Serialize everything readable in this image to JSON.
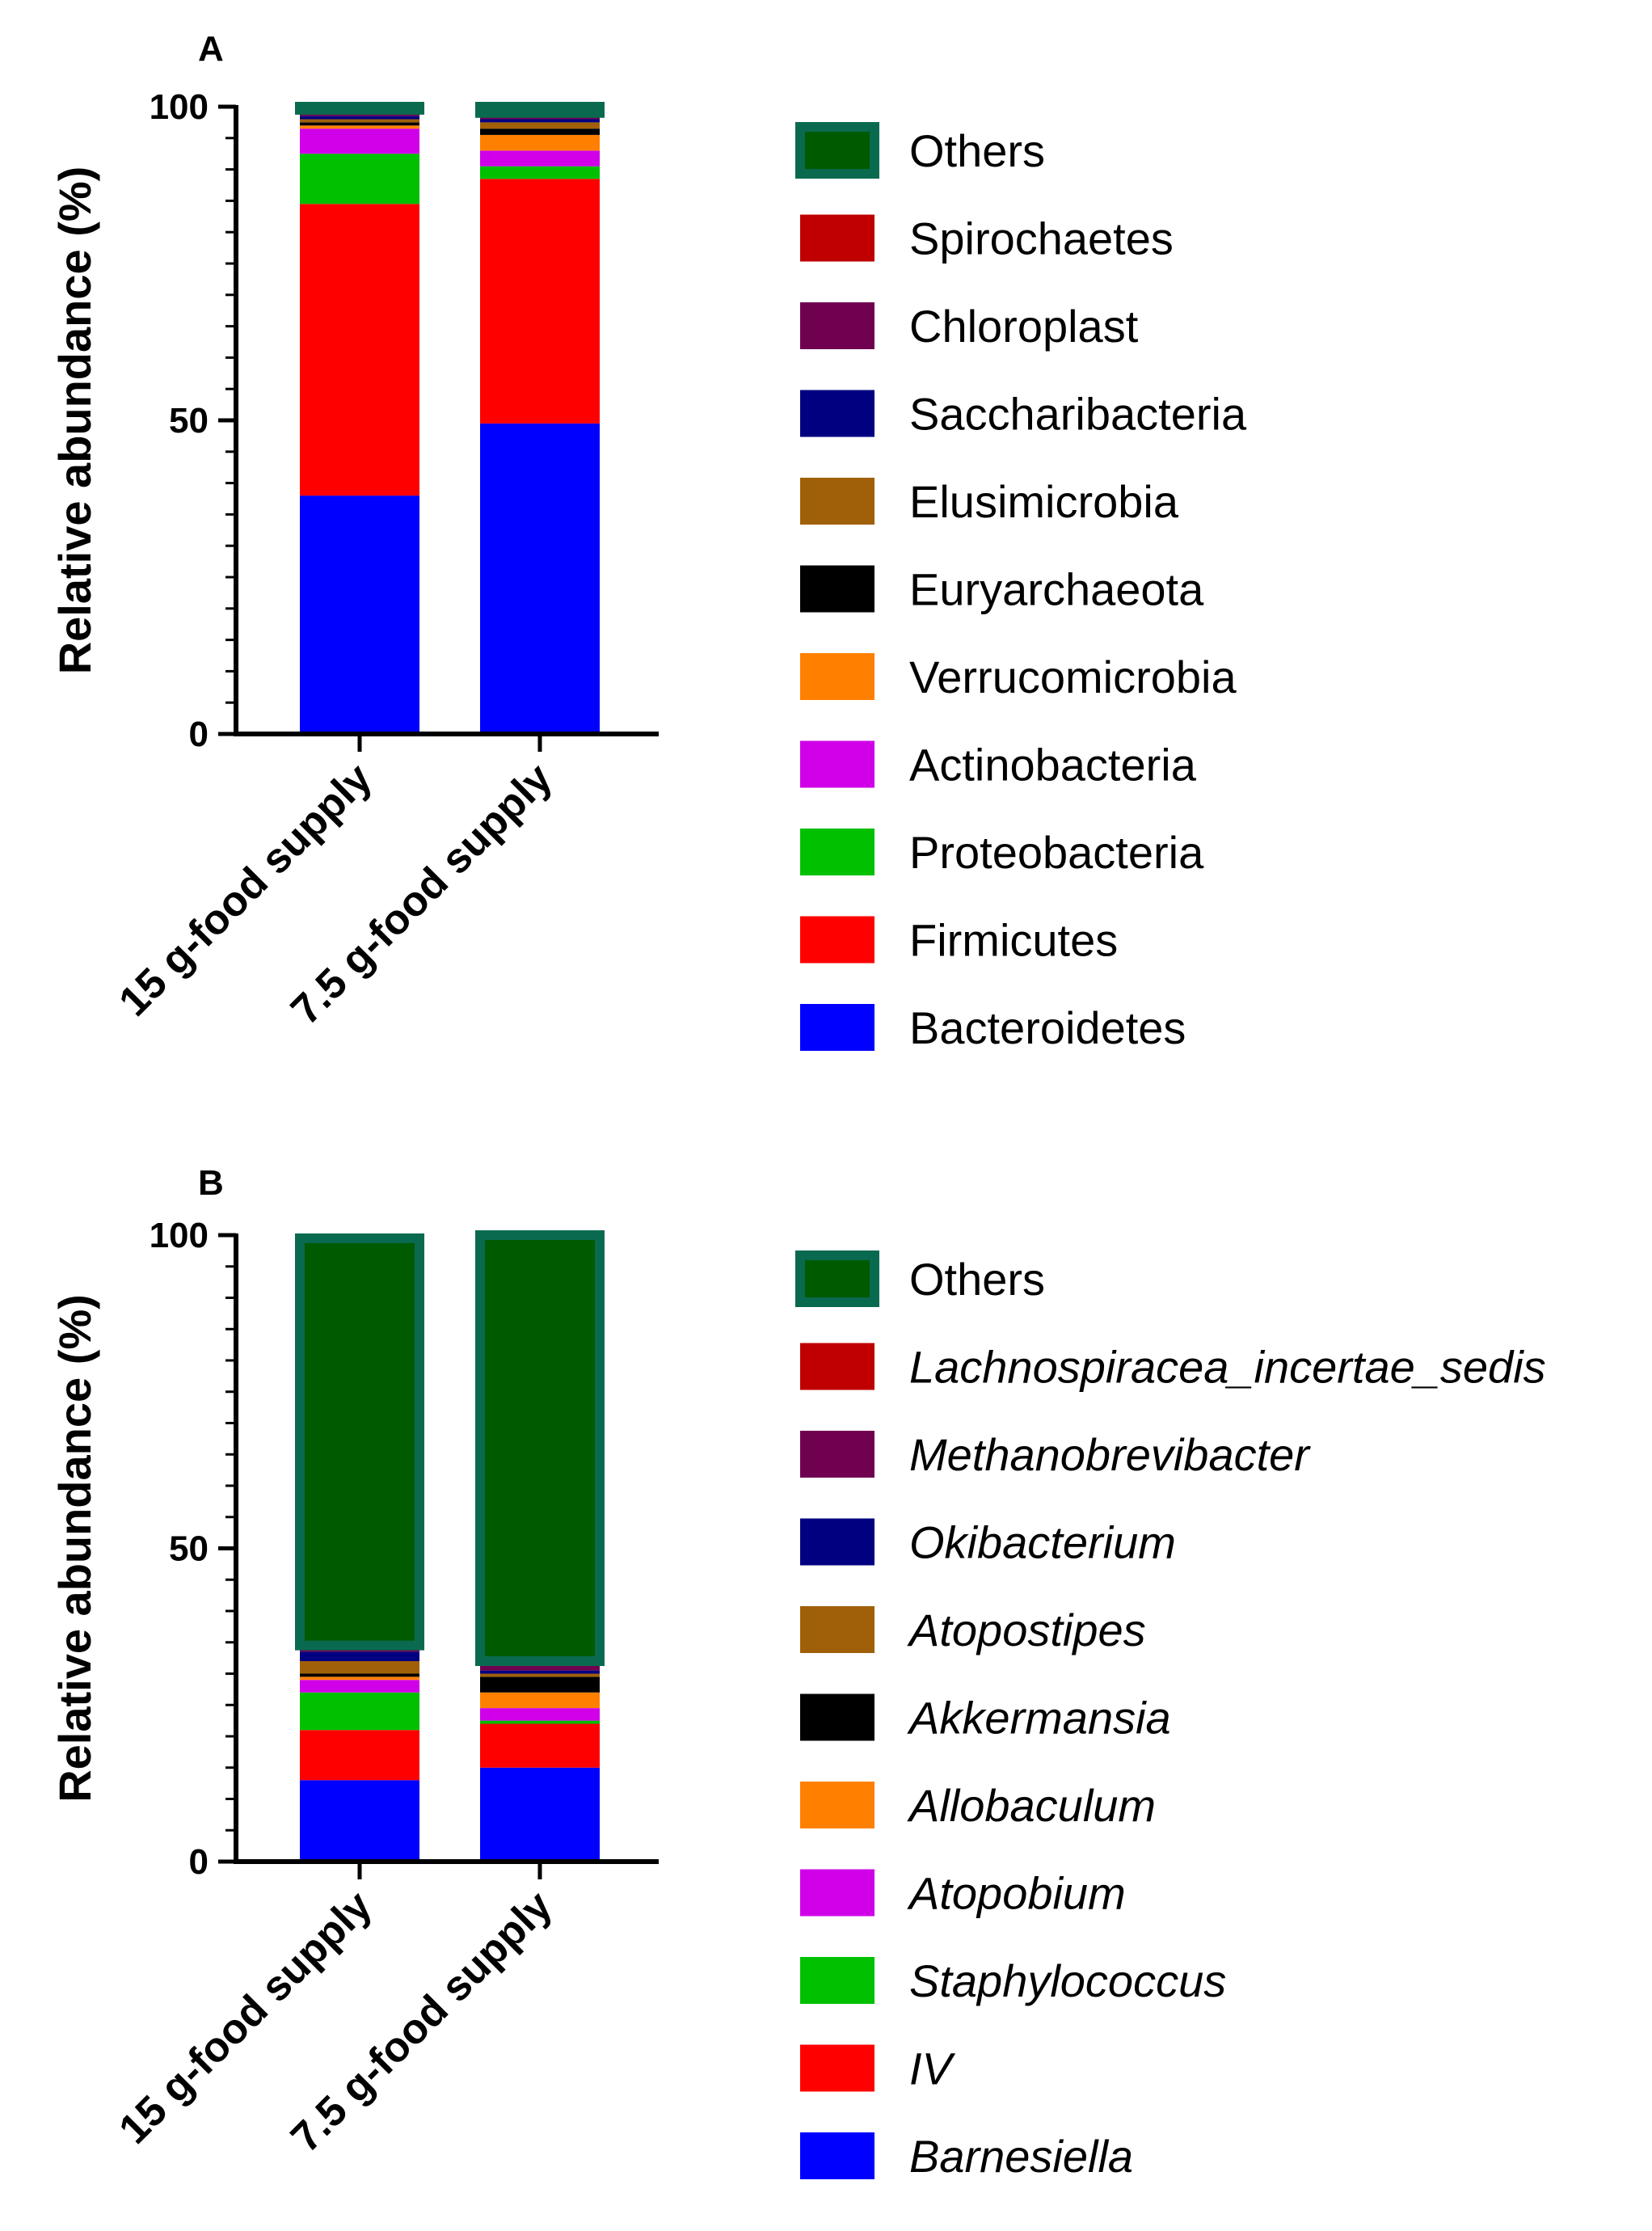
{
  "chart_data": [
    {
      "type": "bar",
      "stacked": true,
      "panel_label": "A",
      "ylabel": "Relative abundance (%)",
      "ylim": [
        0,
        100
      ],
      "yticks": [
        0,
        50,
        100
      ],
      "categories": [
        "15 g-food supply",
        "7.5 g-food supply"
      ],
      "legend_italic": false,
      "series": [
        {
          "name": "Bacteroidetes",
          "color": "#0000ff",
          "values": [
            38,
            49.5
          ]
        },
        {
          "name": "Firmicutes",
          "color": "#ff0000",
          "values": [
            46.5,
            39
          ]
        },
        {
          "name": "Proteobacteria",
          "color": "#00c000",
          "values": [
            8,
            2
          ]
        },
        {
          "name": "Actinobacteria",
          "color": "#d000e8",
          "values": [
            4,
            2.5
          ]
        },
        {
          "name": "Verrucomicrobia",
          "color": "#ff8000",
          "values": [
            0.5,
            2.5
          ]
        },
        {
          "name": "Euryarchaeota",
          "color": "#000000",
          "values": [
            0.5,
            1
          ]
        },
        {
          "name": "Elusimicrobia",
          "color": "#a0600a",
          "values": [
            0.5,
            1
          ]
        },
        {
          "name": "Saccharibacteria",
          "color": "#000080",
          "values": [
            0.5,
            0.5
          ]
        },
        {
          "name": "Chloroplast",
          "color": "#700050",
          "values": [
            0.5,
            0.5
          ]
        },
        {
          "name": "Spirochaetes",
          "color": "#c00000",
          "values": [
            0.5,
            0.5
          ]
        },
        {
          "name": "Others",
          "color": "#005a00",
          "edge": "#0a6a50",
          "values": [
            0.5,
            1
          ]
        }
      ]
    },
    {
      "type": "bar",
      "stacked": true,
      "panel_label": "B",
      "ylabel": "Relative abundance (%)",
      "ylim": [
        0,
        100
      ],
      "yticks": [
        0,
        50,
        100
      ],
      "categories": [
        "15 g-food supply",
        "7.5 g-food supply"
      ],
      "legend_italic": true,
      "series": [
        {
          "name": "Barnesiella",
          "color": "#0000ff",
          "values": [
            13,
            15
          ]
        },
        {
          "name": "IV",
          "color": "#ff0000",
          "values": [
            8,
            7
          ]
        },
        {
          "name": "Staphylococcus",
          "color": "#00c000",
          "values": [
            6,
            0.5
          ]
        },
        {
          "name": "Atopobium",
          "color": "#d000e8",
          "values": [
            2,
            2
          ]
        },
        {
          "name": "Allobaculum",
          "color": "#ff8000",
          "values": [
            0.5,
            2.5
          ]
        },
        {
          "name": "Akkermansia",
          "color": "#000000",
          "values": [
            0.5,
            2.5
          ]
        },
        {
          "name": "Atopostipes",
          "color": "#a0600a",
          "values": [
            2,
            0.5
          ]
        },
        {
          "name": "Okibacterium",
          "color": "#000080",
          "values": [
            1.5,
            0.5
          ]
        },
        {
          "name": "Methanobrevibacter",
          "color": "#700050",
          "values": [
            0.5,
            1
          ]
        },
        {
          "name": "Lachnospiracea_incertae_sedis",
          "color": "#c00000",
          "values": [
            0.5,
            0.5
          ]
        },
        {
          "name": "Others",
          "color": "#005a00",
          "edge": "#0a6a50",
          "values": [
            65,
            68
          ]
        }
      ]
    }
  ]
}
